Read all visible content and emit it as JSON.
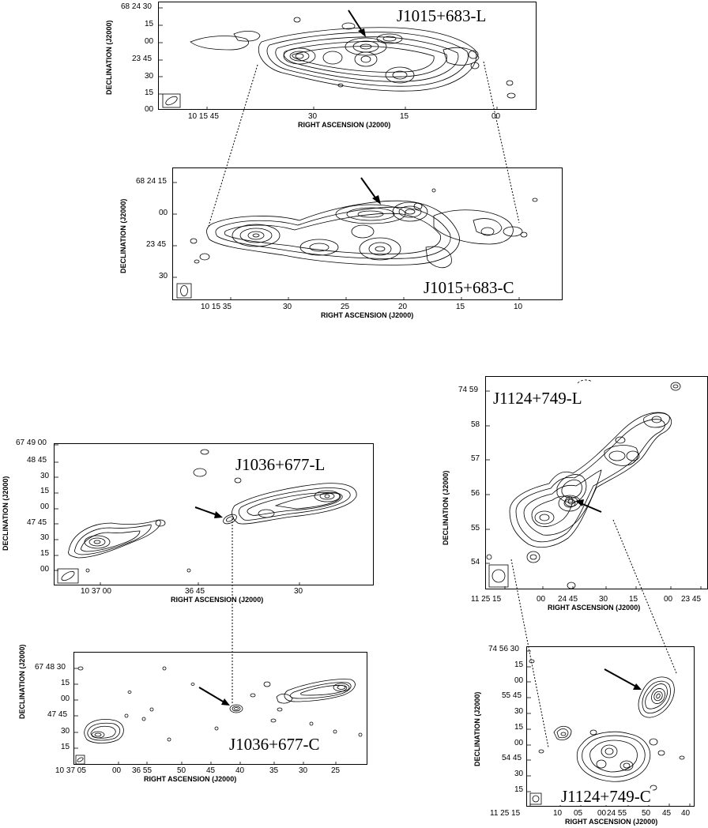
{
  "figure": {
    "panels": [
      {
        "id": "j1015-l",
        "label": "J1015+683-L",
        "xlabel": "RIGHT ASCENSION (J2000)",
        "ylabel": "DECLINATION (J2000)",
        "xticks": [
          "10 15 45",
          "30",
          "15",
          "00"
        ],
        "yticks": [
          "68 24 30",
          "15",
          "00",
          "23 45",
          "30",
          "15",
          "00"
        ]
      },
      {
        "id": "j1015-c",
        "label": "J1015+683-C",
        "xlabel": "RIGHT ASCENSION (J2000)",
        "ylabel": "DECLINATION (J2000)",
        "xticks": [
          "10 15 35",
          "30",
          "25",
          "20",
          "15",
          "10"
        ],
        "yticks": [
          "68 24 15",
          "00",
          "23 45",
          "30"
        ]
      },
      {
        "id": "j1036-l",
        "label": "J1036+677-L",
        "xlabel": "RIGHT ASCENSION (J2000)",
        "ylabel": "DECLINATION (J2000)",
        "xticks": [
          "10 37 00",
          "36 45",
          "30"
        ],
        "yticks": [
          "67 49 00",
          "48 45",
          "30",
          "15",
          "00",
          "47 45",
          "30",
          "15",
          "00"
        ]
      },
      {
        "id": "j1036-c",
        "label": "J1036+677-C",
        "xlabel": "RIGHT ASCENSION (J2000)",
        "ylabel": "DECLINATION (J2000)",
        "xticks": [
          "10 37 05",
          "00",
          "36 55",
          "50",
          "45",
          "40",
          "35",
          "30",
          "25"
        ],
        "yticks": [
          "67 48 30",
          "15",
          "00",
          "47 45",
          "30",
          "15"
        ]
      },
      {
        "id": "j1124-l",
        "label": "J1124+749-L",
        "xlabel": "RIGHT ASCENSION (J2000)",
        "ylabel": "DECLINATION (J2000)",
        "xticks": [
          "11 25 15",
          "00",
          "24 45",
          "30",
          "15",
          "00",
          "23 45"
        ],
        "yticks": [
          "74 59",
          "58",
          "57",
          "56",
          "55",
          "54"
        ]
      },
      {
        "id": "j1124-c",
        "label": "J1124+749-C",
        "xlabel": "RIGHT ASCENSION (J2000)",
        "ylabel": "DECLINATION (J2000)",
        "xticks": [
          "11 25 15",
          "10",
          "05",
          "00",
          "24 55",
          "50",
          "45",
          "40"
        ],
        "yticks": [
          "74 56 30",
          "15",
          "00",
          "55 45",
          "30",
          "15",
          "00",
          "54 45",
          "30",
          "15"
        ]
      }
    ]
  }
}
